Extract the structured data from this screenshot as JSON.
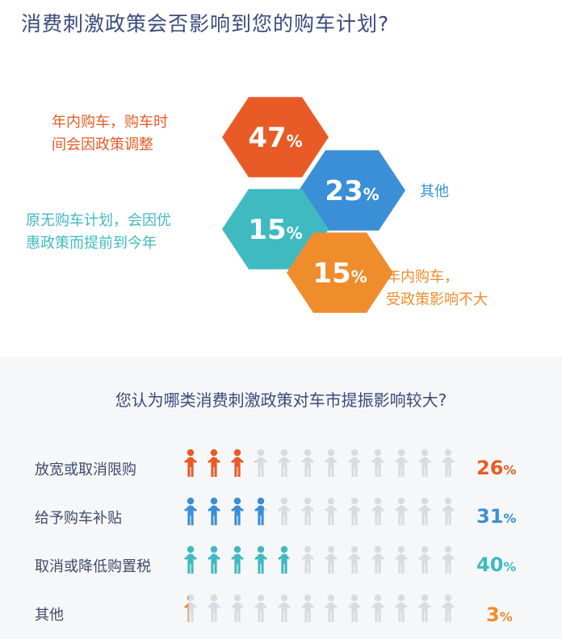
{
  "colors": {
    "orange_red": "#e95b26",
    "blue": "#3a8fd6",
    "teal": "#3fbac0",
    "orange": "#ef8d2d",
    "gray_icon": "#d8dbe1",
    "title": "#3a4a7a"
  },
  "title1": "消费刺激政策会否影响到您的购车计划?",
  "title2": "您认为哪类消费刺激政策对车市提振影响较大?",
  "chart_data": [
    {
      "type": "pie",
      "title": "消费刺激政策会否影响到您的购车计划?",
      "categories": [
        "年内购车，购车时间会因政策调整",
        "其他",
        "原无购车计划，会因优惠政策而提前到今年",
        "年内购车，受政策影响不大"
      ],
      "values": [
        47,
        23,
        15,
        15
      ],
      "labels": [
        {
          "lines": [
            "年内购车，购车时",
            "间会因政策调整"
          ],
          "value": 47,
          "pct": "47",
          "color": "#e95b26"
        },
        {
          "lines": [
            "其他"
          ],
          "value": 23,
          "pct": "23",
          "color": "#3a8fd6"
        },
        {
          "lines": [
            "原无购车计划，会因优",
            "惠政策而提前到今年"
          ],
          "value": 15,
          "pct": "15",
          "color": "#3fbac0"
        },
        {
          "lines": [
            "年内购车，",
            "受政策影响不大"
          ],
          "value": 15,
          "pct": "15",
          "color": "#ef8d2d"
        }
      ]
    },
    {
      "type": "bar",
      "title": "您认为哪类消费刺激政策对车市提振影响较大?",
      "categories": [
        "放宽或取消限购",
        "给予购车补贴",
        "取消或降低购置税",
        "其他"
      ],
      "values": [
        26,
        31,
        40,
        3
      ],
      "pct_labels": [
        "26",
        "31",
        "40",
        "3"
      ],
      "unit": "%",
      "icons_per_row": 12,
      "colors": [
        "#e95b26",
        "#3a8fd6",
        "#3fbac0",
        "#ef8d2d"
      ]
    }
  ]
}
